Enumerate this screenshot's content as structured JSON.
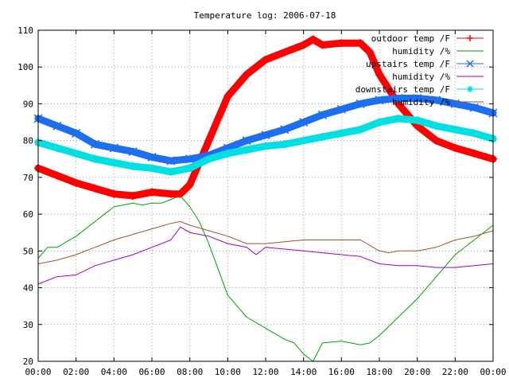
{
  "chart_data": {
    "type": "line",
    "title": "Temperature log: 2006-07-18",
    "xlabel": "",
    "ylabel": "",
    "x_ticks": [
      "00:00",
      "02:00",
      "04:00",
      "06:00",
      "08:00",
      "10:00",
      "12:00",
      "14:00",
      "16:00",
      "18:00",
      "20:00",
      "22:00",
      "00:00"
    ],
    "xlim": [
      0,
      24
    ],
    "ylim": [
      20,
      110
    ],
    "y_ticks": [
      20,
      30,
      40,
      50,
      60,
      70,
      80,
      90,
      100,
      110
    ],
    "grid": true,
    "legend_position": "top-right",
    "x_unit": "hours",
    "series": [
      {
        "name": "outdoor temp /F",
        "color": "#ff0000",
        "marker": "plus",
        "x": [
          0,
          1,
          2,
          3,
          4,
          5,
          6,
          7,
          7.5,
          8,
          8.5,
          9,
          9.5,
          10,
          11,
          12,
          13,
          14,
          14.5,
          15,
          16,
          17,
          17.5,
          18,
          18.5,
          19,
          20,
          21,
          22,
          23,
          24
        ],
        "y": [
          72.5,
          70.5,
          68.5,
          67,
          65.5,
          65,
          66,
          65.5,
          65.5,
          68,
          74,
          80,
          86,
          92,
          98,
          102,
          104,
          106,
          107.5,
          106,
          106.5,
          106.5,
          104,
          98,
          94,
          90,
          84,
          80,
          78,
          76.5,
          75
        ]
      },
      {
        "name": "humidity /%",
        "color": "#00a000",
        "marker": "none",
        "x": [
          0,
          0.5,
          1,
          2,
          3,
          4,
          5,
          5.5,
          6,
          6.5,
          7,
          7.5,
          8,
          8.5,
          9,
          9.5,
          10,
          11,
          12,
          13,
          13.5,
          14,
          14.5,
          15,
          16,
          17,
          17.5,
          18,
          19,
          20,
          21,
          22,
          23,
          24
        ],
        "y": [
          48,
          51,
          51,
          54,
          58,
          62,
          63,
          62.5,
          63,
          63,
          64,
          65,
          62,
          58,
          52,
          45,
          38,
          32,
          29,
          26,
          25,
          22,
          20,
          25,
          25.5,
          24.5,
          25,
          27,
          32,
          37,
          43,
          49,
          53,
          57
        ]
      },
      {
        "name": "upstairs temp /F",
        "color": "#1e6ff0",
        "marker": "x",
        "x": [
          0,
          1,
          2,
          3,
          4,
          5,
          6,
          7,
          8,
          9,
          10,
          11,
          12,
          13,
          14,
          15,
          16,
          17,
          18,
          19,
          20,
          21,
          22,
          23,
          24
        ],
        "y": [
          86,
          84,
          82,
          79,
          78,
          77,
          75.5,
          74.5,
          75,
          76,
          78,
          80,
          81.5,
          83,
          85,
          87,
          88.5,
          90,
          91,
          91.5,
          91.5,
          91,
          90,
          89,
          87.5
        ]
      },
      {
        "name": "humidity /%",
        "color": "#a000c0",
        "marker": "none",
        "x": [
          0,
          1,
          2,
          3,
          4,
          5,
          6,
          7,
          7.5,
          8,
          9,
          10,
          11,
          11.5,
          12,
          13,
          14,
          15,
          16,
          17,
          18,
          19,
          20,
          21,
          22,
          23,
          24
        ],
        "y": [
          41,
          43,
          43.5,
          46,
          47.5,
          49,
          51,
          53,
          56.5,
          55,
          54,
          52,
          51,
          49,
          51,
          50.5,
          50,
          49.5,
          49,
          48.5,
          46.5,
          46,
          46,
          45.5,
          45.5,
          46,
          46.5
        ]
      },
      {
        "name": "downstairs temp /F",
        "color": "#00e0e0",
        "marker": "star",
        "x": [
          0,
          1,
          2,
          3,
          4,
          5,
          6,
          7,
          8,
          9,
          10,
          11,
          12,
          13,
          14,
          15,
          16,
          17,
          18,
          19,
          20,
          21,
          22,
          23,
          24
        ],
        "y": [
          79.5,
          78,
          76.5,
          75,
          74,
          73,
          72.5,
          71.5,
          72.5,
          75,
          76.5,
          77.5,
          78.5,
          79,
          80,
          81,
          82,
          83,
          85,
          86,
          85.5,
          84,
          83,
          82,
          80.5
        ]
      },
      {
        "name": "humidity /%",
        "color": "#a0522d",
        "marker": "none",
        "x": [
          0,
          1,
          2,
          3,
          4,
          5,
          6,
          7,
          7.5,
          8,
          9,
          10,
          11,
          12,
          13,
          14,
          15,
          16,
          17,
          18,
          18.5,
          19,
          20,
          21,
          22,
          23,
          24
        ],
        "y": [
          46.5,
          47.5,
          49,
          51,
          53,
          54.5,
          56,
          57.5,
          58,
          57,
          55.5,
          54,
          52,
          52,
          52.5,
          53,
          53,
          53,
          53,
          50,
          49.5,
          50,
          50,
          51,
          53,
          54,
          55.5
        ]
      }
    ]
  }
}
